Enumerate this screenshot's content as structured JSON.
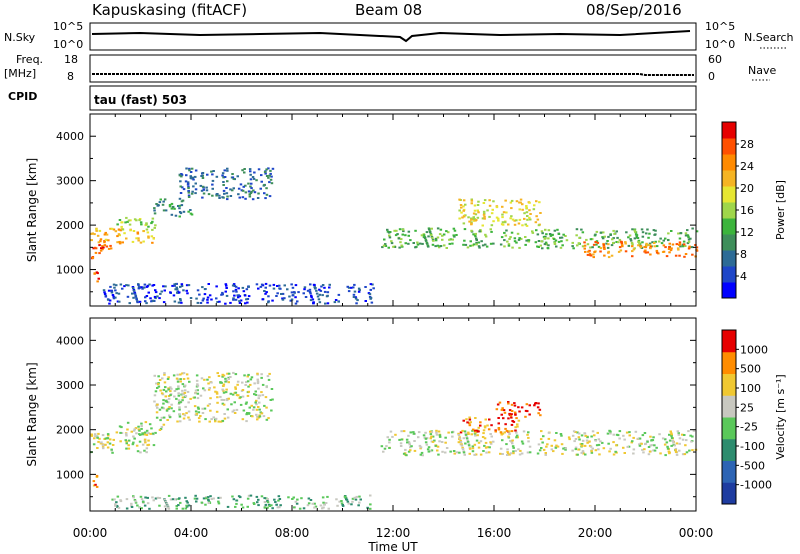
{
  "header": {
    "station": "Kapuskasing (fitACF)",
    "beam": "Beam 08",
    "date": "08/Sep/2016"
  },
  "strips": {
    "nsky_label": "N.Sky",
    "nsearch_label": "N.Search",
    "freq_label": "Freq.",
    "freq_unit": "[MHz]",
    "nave_label": "Nave",
    "cpid_label": "CPID",
    "cpid_value": "tau (fast) 503",
    "noise_ticks_left": [
      "10^5",
      "10^0"
    ],
    "noise_ticks_right": [
      "10^5",
      "10^0"
    ],
    "freq_ticks": [
      "18",
      "8"
    ],
    "nave_ticks": [
      "60",
      "0"
    ]
  },
  "chart_data": [
    {
      "type": "heatmap",
      "name": "power",
      "ylabel": "Slant Range [km]",
      "ylim": [
        180,
        4500
      ],
      "yticks": [
        "1000",
        "2000",
        "3000",
        "4000"
      ],
      "xlim": [
        0,
        24
      ],
      "colorbar": {
        "label": "Power [dB]",
        "ticks": [
          "28",
          "24",
          "20",
          "16",
          "12",
          "8",
          "4"
        ],
        "colors": [
          "#0000ff",
          "#1e46c8",
          "#2d6b96",
          "#3e8e5a",
          "#3cb43c",
          "#9fd64a",
          "#e6e632",
          "#f5b423",
          "#ff8a00",
          "#ff5000",
          "#e60000"
        ]
      },
      "regions": [
        {
          "t0": 0.0,
          "t1": 0.8,
          "r0": 1250,
          "r1": 1700,
          "level": 9
        },
        {
          "t0": 0.0,
          "t1": 2.5,
          "r0": 1600,
          "r1": 1950,
          "level": 7
        },
        {
          "t0": 1.0,
          "t1": 2.6,
          "r0": 1900,
          "r1": 2200,
          "level": 5
        },
        {
          "t0": 2.5,
          "t1": 4.0,
          "r0": 2200,
          "r1": 2600,
          "level": 3
        },
        {
          "t0": 3.5,
          "t1": 7.2,
          "r0": 2600,
          "r1": 3300,
          "level": 2
        },
        {
          "t0": 0.5,
          "t1": 11.2,
          "r0": 250,
          "r1": 700,
          "level": 1
        },
        {
          "t0": 11.5,
          "t1": 24.0,
          "r0": 1500,
          "r1": 1950,
          "level": 4
        },
        {
          "t0": 14.5,
          "t1": 17.8,
          "r0": 2000,
          "r1": 2600,
          "level": 6
        },
        {
          "t0": 19.5,
          "t1": 24.0,
          "r0": 1300,
          "r1": 1650,
          "level": 8
        },
        {
          "t0": 0.0,
          "t1": 0.3,
          "r0": 700,
          "r1": 1000,
          "level": 9
        }
      ]
    },
    {
      "type": "heatmap",
      "name": "velocity",
      "ylabel": "Slant Range [km]",
      "ylim": [
        180,
        4500
      ],
      "yticks": [
        "1000",
        "2000",
        "3000",
        "4000"
      ],
      "xlim": [
        0,
        24
      ],
      "xticks": [
        "00:00",
        "04:00",
        "08:00",
        "12:00",
        "16:00",
        "20:00",
        "00:00"
      ],
      "xlabel": "Time UT",
      "colorbar": {
        "label": "Velocity [m s⁻¹]",
        "ticks": [
          "1000",
          "500",
          "100",
          "25",
          "-25",
          "-100",
          "-500",
          "-1000"
        ],
        "colors": [
          "#1e3ca0",
          "#2d64b4",
          "#2d8c6e",
          "#5ac85a",
          "#c8c8c0",
          "#f0c832",
          "#ff8c00",
          "#e60000"
        ]
      },
      "regions": [
        {
          "t0": 0.0,
          "t1": 2.5,
          "r0": 1500,
          "r1": 1950,
          "level": 4
        },
        {
          "t0": 0.0,
          "t1": 0.3,
          "r0": 700,
          "r1": 1000,
          "level": 6
        },
        {
          "t0": 1.0,
          "t1": 3.0,
          "r0": 1900,
          "r1": 2200,
          "level": 4
        },
        {
          "t0": 2.5,
          "t1": 7.2,
          "r0": 2200,
          "r1": 3300,
          "level": 4
        },
        {
          "t0": 0.5,
          "t1": 11.2,
          "r0": 250,
          "r1": 550,
          "level": 3
        },
        {
          "t0": 11.5,
          "t1": 24.0,
          "r0": 1450,
          "r1": 2000,
          "level": 4
        },
        {
          "t0": 14.5,
          "t1": 17.0,
          "r0": 1950,
          "r1": 2300,
          "level": 6
        },
        {
          "t0": 16.0,
          "t1": 17.8,
          "r0": 2300,
          "r1": 2650,
          "level": 7
        }
      ]
    }
  ]
}
